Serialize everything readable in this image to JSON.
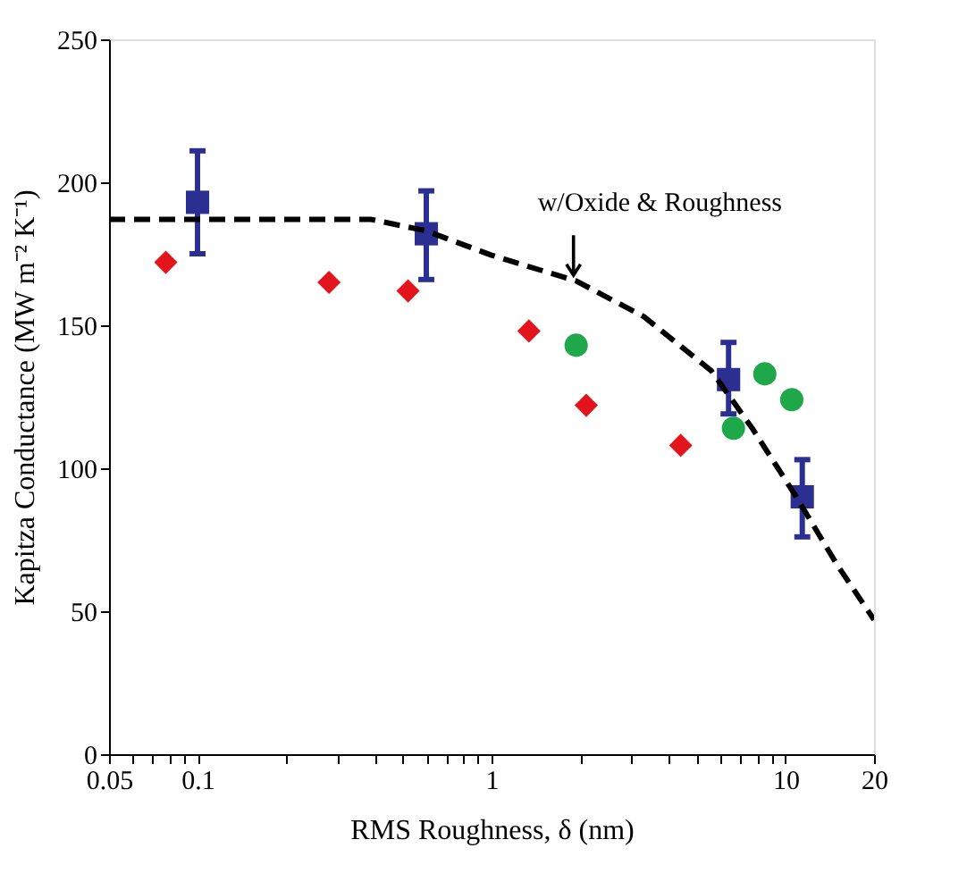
{
  "chart_data": {
    "type": "scatter",
    "xlabel": "RMS Roughness, δ (nm)",
    "ylabel": "Kapitza Conductance (MW m⁻² K⁻¹)",
    "log": "x",
    "grid": false,
    "xlim": [
      0.05,
      20
    ],
    "ylim": [
      0,
      250
    ],
    "xticks": [
      0.05,
      {
        "value": 0.06,
        "label": null
      },
      {
        "value": 0.07,
        "label": null
      },
      {
        "value": 0.08,
        "label": null
      },
      {
        "value": 0.09,
        "label": null
      },
      0.1,
      {
        "value": 0.2,
        "label": null
      },
      {
        "value": 0.3,
        "label": null
      },
      {
        "value": 0.4,
        "label": null
      },
      {
        "value": 0.5,
        "label": null
      },
      {
        "value": 0.6,
        "label": null
      },
      {
        "value": 0.7,
        "label": null
      },
      {
        "value": 0.8,
        "label": null
      },
      {
        "value": 0.9,
        "label": null
      },
      1,
      {
        "value": 2,
        "label": null
      },
      {
        "value": 3,
        "label": null
      },
      {
        "value": 4,
        "label": null
      },
      {
        "value": 5,
        "label": null
      },
      {
        "value": 6,
        "label": null
      },
      {
        "value": 7,
        "label": null
      },
      {
        "value": 8,
        "label": null
      },
      {
        "value": 9,
        "label": null
      },
      10,
      20
    ],
    "yticks": [
      0,
      50,
      100,
      150,
      200,
      250
    ],
    "annotations": [
      {
        "text": "w/Oxide & Roughness",
        "x": 1.9,
        "y": 167
      }
    ],
    "series": [
      {
        "marker": "square",
        "color": "#2b2f91",
        "x": [
          0.1,
          0.6,
          6.4,
          11.4
        ],
        "values": [
          193,
          182,
          131,
          90
        ],
        "errors": [
          [
            175,
            211
          ],
          [
            166,
            197
          ],
          [
            119,
            144
          ],
          [
            76,
            103
          ]
        ]
      },
      {
        "marker": "diamond",
        "color": "#e3141b",
        "x": [
          0.078,
          0.28,
          0.52,
          1.34,
          2.1,
          4.4
        ],
        "values": [
          172,
          165,
          162,
          148,
          122,
          108
        ]
      },
      {
        "marker": "circle",
        "color": "#1fa84a",
        "x": [
          1.94,
          6.65,
          8.5,
          10.5
        ],
        "values": [
          143,
          114,
          133,
          124
        ]
      },
      {
        "type": "line",
        "line_style": "dashed",
        "marker": "none",
        "color": "#000000",
        "x": [
          0.05,
          0.39,
          0.6,
          1.0,
          1.94,
          3.3,
          5.6,
          7.7,
          10.8,
          14.9,
          20
        ],
        "values": [
          187,
          187,
          183,
          174.5,
          165.5,
          153,
          134,
          114,
          90.5,
          66.6,
          47
        ]
      }
    ]
  }
}
